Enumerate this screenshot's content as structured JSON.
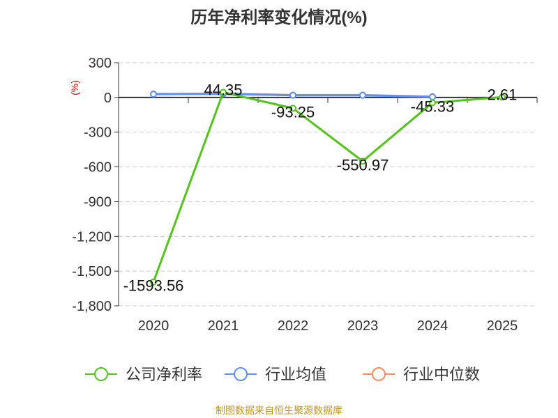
{
  "chart_data": {
    "type": "line",
    "title": "历年净利率变化情况(%)",
    "ylabel": "(%)",
    "xlabel": "",
    "categories": [
      "2020",
      "2021",
      "2022",
      "2023",
      "2024",
      "2025"
    ],
    "ylim": [
      -1800,
      300
    ],
    "yticks": [
      300,
      0,
      -300,
      -600,
      -900,
      -1200,
      -1500,
      -1800
    ],
    "ytick_labels": [
      "300",
      "0",
      "-300",
      "-600",
      "-900",
      "-1,200",
      "-1,500",
      "-1,800"
    ],
    "grid": true,
    "legend_position": "bottom",
    "series": [
      {
        "name": "公司净利率",
        "color": "#52c41a",
        "values": [
          -1593.56,
          44.35,
          -93.25,
          -550.97,
          -45.33,
          2.61
        ],
        "labels": [
          "-1593.56",
          "44.35",
          "-93.25",
          "-550.97",
          "-45.33",
          "2.61"
        ]
      },
      {
        "name": "行业均值",
        "color": "#5b8ff9",
        "values": [
          28,
          31,
          19,
          19,
          5,
          null
        ]
      },
      {
        "name": "行业中位数",
        "color": "#ff8c5a",
        "values": [
          30,
          33,
          21,
          21,
          6,
          null
        ]
      }
    ]
  },
  "footer": {
    "source": "制图数据来自恒生聚源数据库"
  }
}
